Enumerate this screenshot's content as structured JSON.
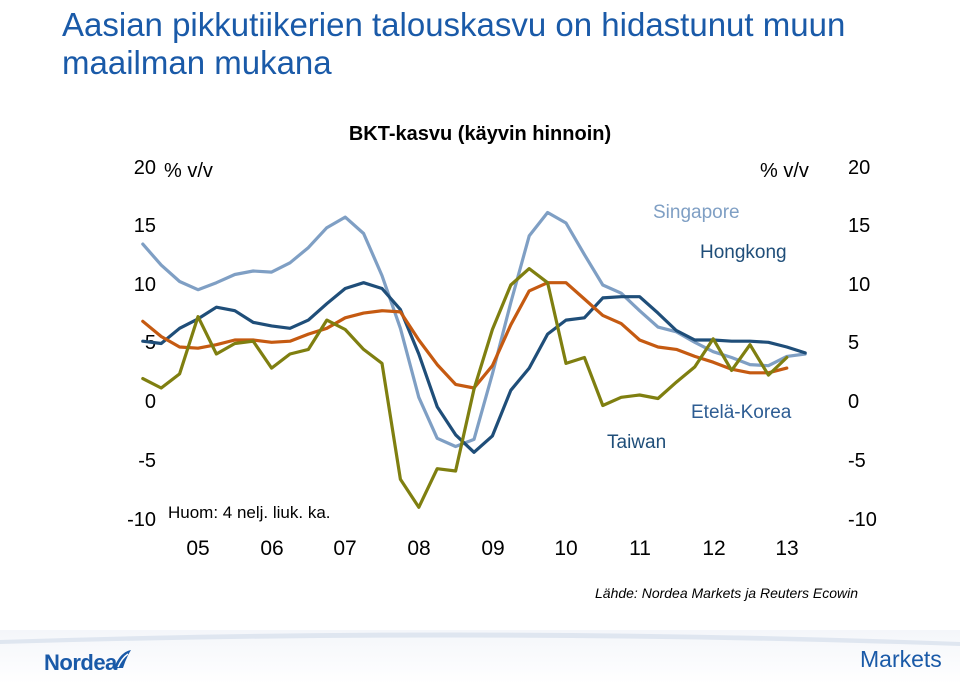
{
  "slide": {
    "title": "Aasian pikkutiikerien talouskasvu on hidastunut muun maailman mukana",
    "note": "Huom: 4 nelj. liuk. ka.",
    "source": "Lähde: Nordea Markets ja Reuters Ecowin",
    "logo": "Nordea",
    "brand": "Markets"
  },
  "chart_data": {
    "type": "line",
    "title": "BKT-kasvu (käyvin hinnoin)",
    "ylabel_left": "% v/v",
    "ylabel_right": "% v/v",
    "ylim": [
      -10,
      20
    ],
    "yticks": [
      "20",
      "15",
      "10",
      "5",
      "0",
      "-5",
      "-10"
    ],
    "ytick_values": [
      20,
      15,
      10,
      5,
      0,
      -5,
      -10
    ],
    "xtick_labels": [
      "05",
      "06",
      "07",
      "08",
      "09",
      "10",
      "11",
      "12",
      "13"
    ],
    "xtick_values": [
      2005.0,
      2006.0,
      2007.0,
      2008.0,
      2009.0,
      2010.0,
      2011.0,
      2012.0,
      2013.0
    ],
    "x": [
      2004.25,
      2004.5,
      2004.75,
      2005.0,
      2005.25,
      2005.5,
      2005.75,
      2006.0,
      2006.25,
      2006.5,
      2006.75,
      2007.0,
      2007.25,
      2007.5,
      2007.75,
      2008.0,
      2008.25,
      2008.5,
      2008.75,
      2009.0,
      2009.25,
      2009.5,
      2009.75,
      2010.0,
      2010.25,
      2010.5,
      2010.75,
      2011.0,
      2011.25,
      2011.5,
      2011.75,
      2012.0,
      2012.25,
      2012.5,
      2012.75,
      2013.0,
      2013.25,
      2013.5
    ],
    "series": [
      {
        "name": "Singapore",
        "color": "#7f9fc4",
        "values": [
          13.5,
          11.7,
          10.3,
          9.6,
          10.2,
          10.9,
          11.2,
          11.1,
          11.9,
          13.2,
          14.9,
          15.8,
          14.4,
          10.8,
          6.3,
          0.4,
          -3.1,
          -3.8,
          -3.2,
          2.4,
          8.5,
          14.2,
          16.2,
          15.3,
          12.6,
          10.0,
          9.3,
          7.8,
          6.4,
          6.0,
          5.1,
          4.3,
          3.8,
          3.2,
          3.1,
          3.9,
          4.1,
          null
        ]
      },
      {
        "name": "Hongkong",
        "color": "#1f4e79",
        "values": [
          5.2,
          5.0,
          6.3,
          7.1,
          8.1,
          7.8,
          6.8,
          6.5,
          6.3,
          7.0,
          8.4,
          9.7,
          10.2,
          9.7,
          7.9,
          4.1,
          -0.4,
          -2.8,
          -4.3,
          -2.9,
          1.0,
          2.9,
          5.8,
          7.0,
          7.2,
          8.9,
          9.0,
          9.0,
          7.6,
          6.1,
          5.3,
          5.3,
          5.2,
          5.2,
          5.1,
          4.7,
          4.2,
          null
        ]
      },
      {
        "name": "Etelä-Korea",
        "color": "#c55a11",
        "values": [
          6.9,
          5.6,
          4.7,
          4.6,
          4.9,
          5.3,
          5.3,
          5.1,
          5.2,
          5.8,
          6.3,
          7.2,
          7.6,
          7.8,
          7.7,
          5.3,
          3.2,
          1.5,
          1.2,
          3.1,
          6.6,
          9.5,
          10.2,
          10.2,
          8.8,
          7.4,
          6.7,
          5.3,
          4.7,
          4.5,
          3.9,
          3.4,
          2.8,
          2.5,
          2.5,
          2.9,
          null,
          null
        ]
      },
      {
        "name": "Taiwan",
        "color": "#7f7f10",
        "values": [
          2.0,
          1.2,
          2.4,
          7.3,
          4.1,
          5.0,
          5.2,
          2.9,
          4.1,
          4.5,
          7.0,
          6.2,
          4.5,
          3.3,
          -6.6,
          -9.0,
          -5.7,
          -5.9,
          1.1,
          6.2,
          10.0,
          11.4,
          10.2,
          3.3,
          3.8,
          -0.3,
          0.4,
          0.6,
          0.3,
          1.7,
          3.0,
          5.4,
          2.7,
          4.9,
          2.3,
          3.8,
          null,
          null
        ]
      }
    ],
    "series_labels": {
      "singapore": "Singapore",
      "hongkong": "Hongkong",
      "korea": "Etelä-Korea",
      "taiwan": "Taiwan"
    }
  }
}
